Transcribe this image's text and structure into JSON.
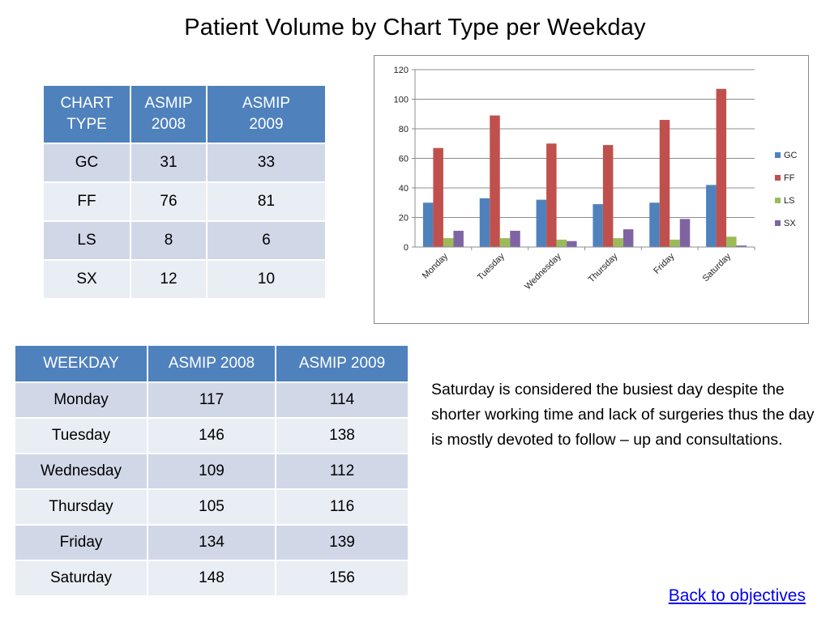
{
  "title": "Patient Volume by Chart Type per Weekday",
  "chart_type_table": {
    "headers": [
      [
        "CHART",
        "TYPE"
      ],
      [
        "ASMIP",
        "2008"
      ],
      [
        "ASMIP",
        "2009"
      ]
    ],
    "rows": [
      [
        "GC",
        "31",
        "33"
      ],
      [
        "FF",
        "76",
        "81"
      ],
      [
        "LS",
        "8",
        "6"
      ],
      [
        "SX",
        "12",
        "10"
      ]
    ]
  },
  "weekday_table": {
    "headers": [
      "WEEKDAY",
      "ASMIP 2008",
      "ASMIP 2009"
    ],
    "rows": [
      [
        "Monday",
        "117",
        "114"
      ],
      [
        "Tuesday",
        "146",
        "138"
      ],
      [
        "Wednesday",
        "109",
        "112"
      ],
      [
        "Thursday",
        "105",
        "116"
      ],
      [
        "Friday",
        "134",
        "139"
      ],
      [
        "Saturday",
        "148",
        "156"
      ]
    ]
  },
  "note": "Saturday is considered the busiest day despite the shorter working time and lack of surgeries thus the day is mostly devoted to follow – up and consultations.",
  "link": "Back to objectives",
  "chart_data": {
    "type": "bar",
    "categories": [
      "Monday",
      "Tuesday",
      "Wednesday",
      "Thursday",
      "Friday",
      "Saturday"
    ],
    "series": [
      {
        "name": "GC",
        "color": "#4f81bd",
        "values": [
          30,
          33,
          32,
          29,
          30,
          42
        ]
      },
      {
        "name": "FF",
        "color": "#c0504d",
        "values": [
          67,
          89,
          70,
          69,
          86,
          107
        ]
      },
      {
        "name": "LS",
        "color": "#9bbb59",
        "values": [
          6,
          6,
          5,
          6,
          5,
          7
        ]
      },
      {
        "name": "SX",
        "color": "#8064a2",
        "values": [
          11,
          11,
          4,
          12,
          19,
          1
        ]
      }
    ],
    "ylim": [
      0,
      120
    ],
    "yticks": [
      0,
      20,
      40,
      60,
      80,
      100,
      120
    ],
    "grid": true,
    "legend": "right"
  }
}
